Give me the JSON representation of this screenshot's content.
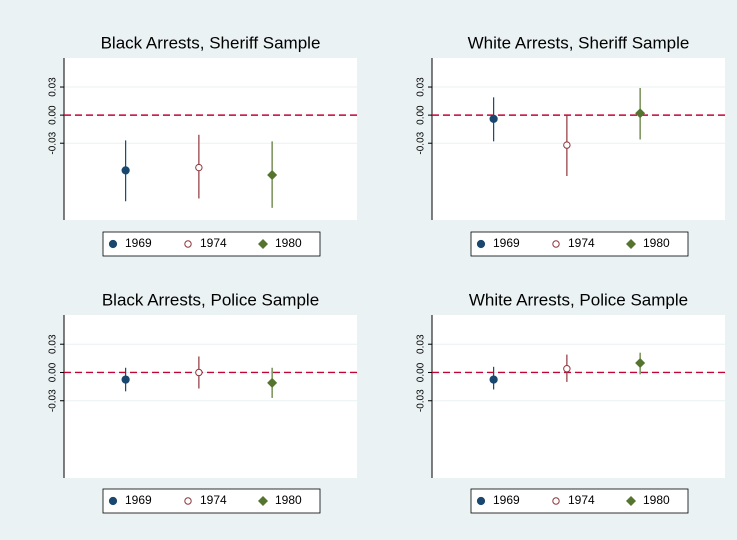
{
  "chart_data": [
    {
      "type": "errorbar",
      "title": "Black Arrests, Sheriff Sample",
      "ylim": [
        -0.112,
        0.061
      ],
      "yticks": [
        {
          "value": -0.03,
          "label": "-0.03"
        },
        {
          "value": 0,
          "label": "0.00"
        },
        {
          "value": 0.03,
          "label": "0.03"
        }
      ],
      "grid": true,
      "refline": 0,
      "legend": "bottom",
      "series": [
        {
          "name": "1969",
          "color": "#1a476f",
          "marker": "circle",
          "value": -0.059,
          "ci": [
            -0.092,
            -0.027
          ]
        },
        {
          "name": "1974",
          "color": "#90353b",
          "marker": "hollow-circle",
          "value": -0.056,
          "ci": [
            -0.089,
            -0.021
          ]
        },
        {
          "name": "1980",
          "color": "#55752f",
          "marker": "diamond",
          "value": -0.064,
          "ci": [
            -0.099,
            -0.028
          ]
        }
      ]
    },
    {
      "type": "errorbar",
      "title": "White Arrests, Sheriff Sample",
      "ylim": [
        -0.112,
        0.061
      ],
      "yticks": [
        {
          "value": -0.03,
          "label": "-0.03"
        },
        {
          "value": 0,
          "label": "0.00"
        },
        {
          "value": 0.03,
          "label": "0.03"
        }
      ],
      "grid": true,
      "refline": 0,
      "legend": "bottom",
      "series": [
        {
          "name": "1969",
          "color": "#1a476f",
          "marker": "circle",
          "value": -0.004,
          "ci": [
            -0.028,
            0.019
          ]
        },
        {
          "name": "1974",
          "color": "#90353b",
          "marker": "hollow-circle",
          "value": -0.032,
          "ci": [
            -0.065,
            0
          ]
        },
        {
          "name": "1980",
          "color": "#55752f",
          "marker": "diamond",
          "value": 0.002,
          "ci": [
            -0.026,
            0.029
          ]
        }
      ]
    },
    {
      "type": "errorbar",
      "title": "Black Arrests, Police Sample",
      "ylim": [
        -0.112,
        0.061
      ],
      "yticks": [
        {
          "value": -0.03,
          "label": "-0.03"
        },
        {
          "value": 0,
          "label": "0.00"
        },
        {
          "value": 0.03,
          "label": "0.03"
        }
      ],
      "grid": true,
      "refline": 0,
      "legend": "bottom",
      "series": [
        {
          "name": "1969",
          "color": "#1a476f",
          "marker": "circle",
          "value": -0.0075,
          "ci": [
            -0.02,
            0.005
          ]
        },
        {
          "name": "1974",
          "color": "#90353b",
          "marker": "hollow-circle",
          "value": 0,
          "ci": [
            -0.017,
            0.017
          ]
        },
        {
          "name": "1980",
          "color": "#55752f",
          "marker": "diamond",
          "value": -0.011,
          "ci": [
            -0.027,
            0.005
          ]
        }
      ]
    },
    {
      "type": "errorbar",
      "title": "White Arrests, Police Sample",
      "ylim": [
        -0.112,
        0.061
      ],
      "yticks": [
        {
          "value": -0.03,
          "label": "-0.03"
        },
        {
          "value": 0,
          "label": "0.00"
        },
        {
          "value": 0.03,
          "label": "0.03"
        }
      ],
      "grid": true,
      "refline": 0,
      "legend": "bottom",
      "series": [
        {
          "name": "1969",
          "color": "#1a476f",
          "marker": "circle",
          "value": -0.0075,
          "ci": [
            -0.018,
            0.006
          ]
        },
        {
          "name": "1974",
          "color": "#90353b",
          "marker": "hollow-circle",
          "value": 0.004,
          "ci": [
            -0.01,
            0.019
          ]
        },
        {
          "name": "1980",
          "color": "#55752f",
          "marker": "diamond",
          "value": 0.01,
          "ci": [
            -0.002,
            0.021
          ]
        }
      ]
    }
  ]
}
